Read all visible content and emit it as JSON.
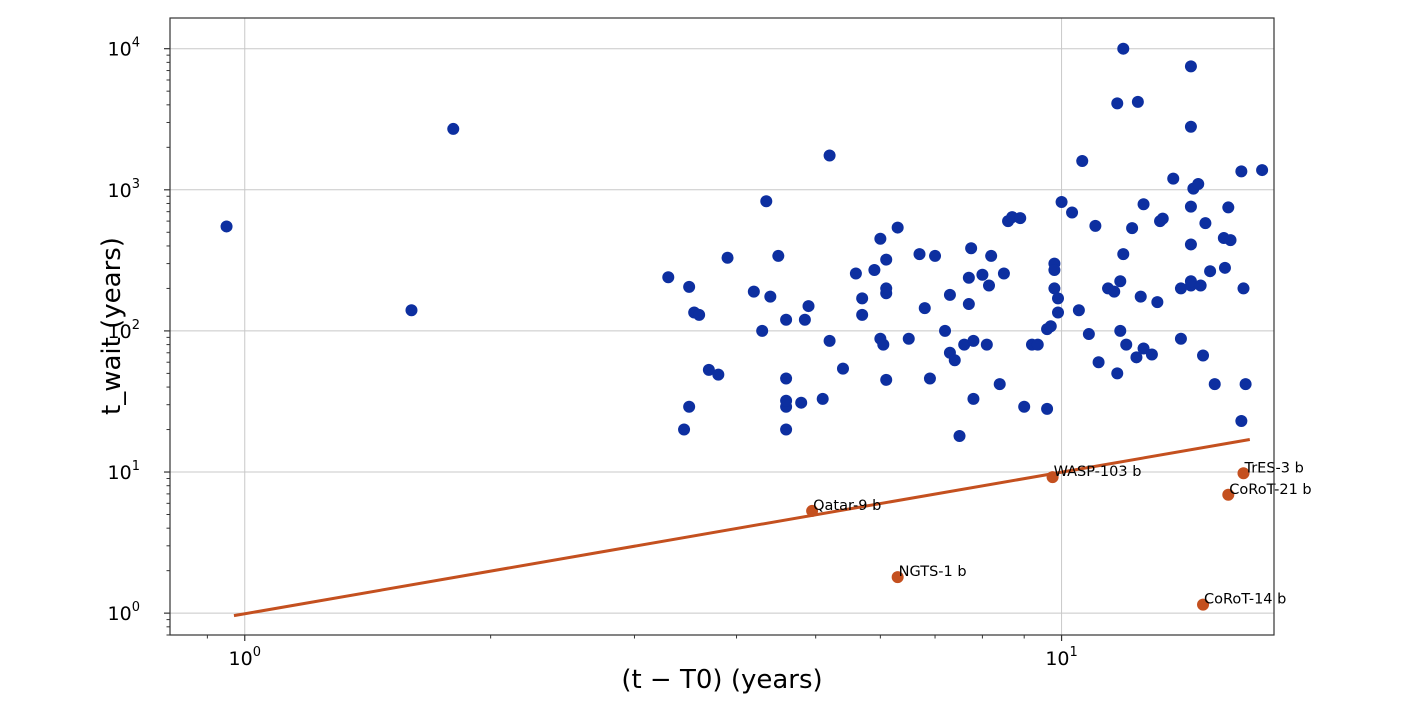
{
  "chart_data": {
    "type": "scatter",
    "title": "",
    "xlabel": "(t − T0) (years)",
    "ylabel": "t_wait (years)",
    "xscale": "log",
    "yscale": "log",
    "xlim": [
      0.81,
      18.2
    ],
    "ylim": [
      0.7,
      16500
    ],
    "grid": true,
    "legend": "none",
    "x_ticks": [
      {
        "value": 1,
        "label": "10",
        "exponent": "0"
      },
      {
        "value": 10,
        "label": "10",
        "exponent": "1"
      }
    ],
    "y_ticks": [
      {
        "value": 1,
        "label": "10",
        "exponent": "0"
      },
      {
        "value": 10,
        "label": "10",
        "exponent": "1"
      },
      {
        "value": 100,
        "label": "10",
        "exponent": "2"
      },
      {
        "value": 1000,
        "label": "10",
        "exponent": "3"
      },
      {
        "value": 10000,
        "label": "10",
        "exponent": "4"
      }
    ],
    "colors": {
      "blue": "#0d2fa0",
      "orange": "#c4501f"
    },
    "series": [
      {
        "color": "#0d2fa0",
        "points": [
          [
            0.95,
            550
          ],
          [
            1.6,
            140
          ],
          [
            1.8,
            2700
          ],
          [
            3.3,
            240
          ],
          [
            3.5,
            205
          ],
          [
            3.55,
            135
          ],
          [
            3.6,
            130
          ],
          [
            3.45,
            20
          ],
          [
            3.5,
            29
          ],
          [
            3.7,
            53
          ],
          [
            3.8,
            49
          ],
          [
            3.9,
            330
          ],
          [
            4.2,
            190
          ],
          [
            4.3,
            100
          ],
          [
            4.4,
            175
          ],
          [
            4.35,
            830
          ],
          [
            4.5,
            340
          ],
          [
            4.6,
            120
          ],
          [
            4.6,
            46
          ],
          [
            4.6,
            20
          ],
          [
            4.6,
            29
          ],
          [
            4.6,
            32
          ],
          [
            4.85,
            120
          ],
          [
            4.9,
            150
          ],
          [
            4.8,
            31
          ],
          [
            5.1,
            33
          ],
          [
            5.2,
            1750
          ],
          [
            5.2,
            85
          ],
          [
            5.4,
            54
          ],
          [
            5.6,
            255
          ],
          [
            5.7,
            130
          ],
          [
            5.7,
            170
          ],
          [
            5.9,
            270
          ],
          [
            6.0,
            450
          ],
          [
            6.0,
            88
          ],
          [
            6.05,
            80
          ],
          [
            6.1,
            45
          ],
          [
            6.1,
            185
          ],
          [
            6.1,
            200
          ],
          [
            6.1,
            320
          ],
          [
            6.3,
            540
          ],
          [
            6.5,
            88
          ],
          [
            6.7,
            350
          ],
          [
            6.8,
            145
          ],
          [
            6.9,
            46
          ],
          [
            7.0,
            340
          ],
          [
            7.2,
            100
          ],
          [
            7.3,
            180
          ],
          [
            7.3,
            70
          ],
          [
            7.4,
            62
          ],
          [
            7.5,
            18
          ],
          [
            7.6,
            80
          ],
          [
            7.7,
            155
          ],
          [
            7.7,
            238
          ],
          [
            7.75,
            385
          ],
          [
            7.8,
            33
          ],
          [
            7.8,
            85
          ],
          [
            8.0,
            250
          ],
          [
            8.1,
            80
          ],
          [
            8.15,
            210
          ],
          [
            8.2,
            340
          ],
          [
            8.4,
            42
          ],
          [
            8.5,
            255
          ],
          [
            8.6,
            600
          ],
          [
            8.7,
            640
          ],
          [
            8.9,
            630
          ],
          [
            9.0,
            29
          ],
          [
            9.2,
            80
          ],
          [
            9.35,
            80
          ],
          [
            9.6,
            28
          ],
          [
            9.6,
            103
          ],
          [
            9.7,
            108
          ],
          [
            9.8,
            200
          ],
          [
            9.8,
            300
          ],
          [
            9.8,
            270
          ],
          [
            9.9,
            170
          ],
          [
            9.9,
            135
          ],
          [
            10.0,
            820
          ],
          [
            10.3,
            690
          ],
          [
            10.5,
            140
          ],
          [
            10.6,
            1600
          ],
          [
            10.8,
            95
          ],
          [
            11.0,
            555
          ],
          [
            11.1,
            60
          ],
          [
            11.4,
            200
          ],
          [
            11.6,
            190
          ],
          [
            11.7,
            4100
          ],
          [
            11.7,
            50
          ],
          [
            11.8,
            100
          ],
          [
            11.8,
            225
          ],
          [
            11.9,
            10000
          ],
          [
            11.9,
            350
          ],
          [
            12.0,
            80
          ],
          [
            12.2,
            535
          ],
          [
            12.35,
            65
          ],
          [
            12.4,
            4200
          ],
          [
            12.5,
            175
          ],
          [
            12.6,
            790
          ],
          [
            12.6,
            75
          ],
          [
            12.9,
            68
          ],
          [
            13.1,
            160
          ],
          [
            13.2,
            600
          ],
          [
            13.3,
            625
          ],
          [
            13.7,
            1200
          ],
          [
            14.0,
            88
          ],
          [
            14.0,
            200
          ],
          [
            14.4,
            210
          ],
          [
            14.4,
            225
          ],
          [
            14.4,
            7500
          ],
          [
            14.4,
            2800
          ],
          [
            14.4,
            410
          ],
          [
            14.4,
            760
          ],
          [
            14.5,
            1020
          ],
          [
            14.7,
            1100
          ],
          [
            14.8,
            210
          ],
          [
            14.9,
            67
          ],
          [
            15.0,
            580
          ],
          [
            15.2,
            265
          ],
          [
            15.4,
            42
          ],
          [
            15.8,
            455
          ],
          [
            15.85,
            280
          ],
          [
            16.0,
            750
          ],
          [
            16.1,
            440
          ],
          [
            16.6,
            23
          ],
          [
            16.6,
            1350
          ],
          [
            16.7,
            200
          ],
          [
            16.8,
            42
          ],
          [
            17.6,
            1380
          ]
        ]
      },
      {
        "color": "#c4501f",
        "points": [
          {
            "name": "Qatar-9 b",
            "x": 4.95,
            "y": 5.3
          },
          {
            "name": "NGTS-1 b",
            "x": 6.3,
            "y": 1.8
          },
          {
            "name": "WASP-103 b",
            "x": 9.75,
            "y": 9.2
          },
          {
            "name": "TrES-3 b",
            "x": 16.7,
            "y": 9.8
          },
          {
            "name": "CoRoT-21 b",
            "x": 16.0,
            "y": 6.9
          },
          {
            "name": "CoRoT-14 b",
            "x": 14.9,
            "y": 1.15
          }
        ]
      }
    ],
    "fit_line": {
      "color": "#c4501f",
      "x": [
        0.97,
        17.0
      ],
      "y": [
        0.96,
        17.0
      ]
    }
  }
}
